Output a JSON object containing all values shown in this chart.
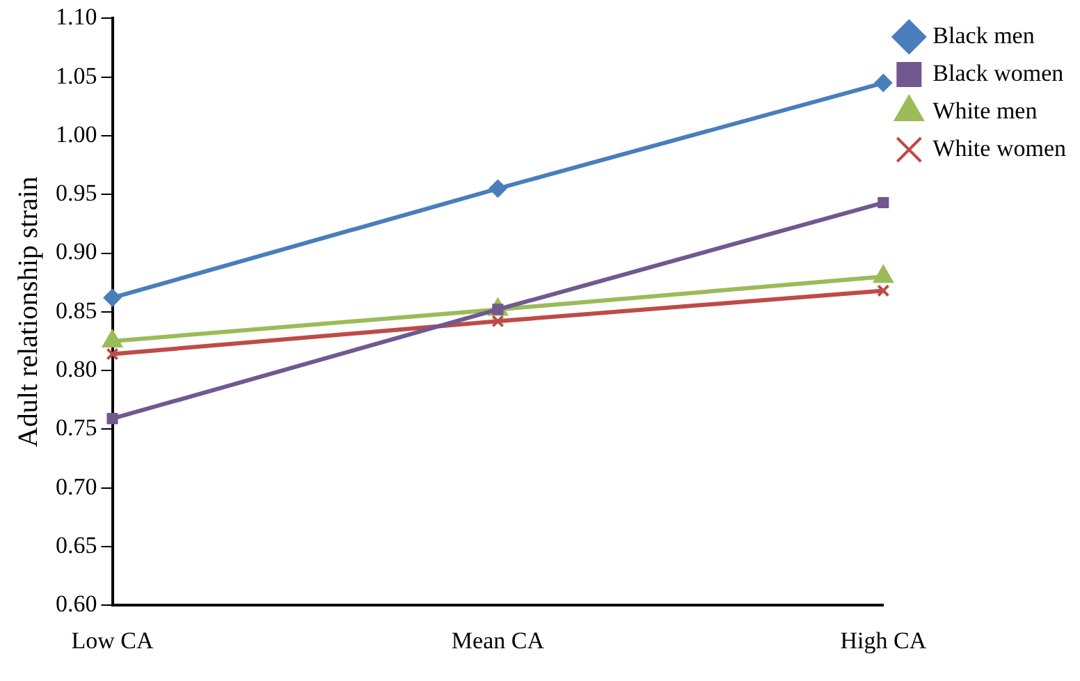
{
  "chart_data": {
    "type": "line",
    "ylabel": "Adult relationship strain",
    "categories": [
      "Low CA",
      "Mean CA",
      "High CA"
    ],
    "series": [
      {
        "name": "Black men",
        "color": "#4a7ebb",
        "marker": "diamond",
        "values": [
          0.862,
          0.955,
          1.045
        ]
      },
      {
        "name": "Black women",
        "color": "#71588f",
        "marker": "square",
        "values": [
          0.759,
          0.852,
          0.943
        ]
      },
      {
        "name": "White men",
        "color": "#9bbb59",
        "marker": "triangle",
        "values": [
          0.825,
          0.852,
          0.88
        ]
      },
      {
        "name": "White women",
        "color": "#be4b48",
        "marker": "cross",
        "values": [
          0.814,
          0.842,
          0.868
        ]
      }
    ],
    "ylim": [
      0.6,
      1.1
    ],
    "yticks": [
      {
        "value": 0.6,
        "label": "0.60"
      },
      0.65,
      {
        "value": 0.7,
        "label": "0.70"
      },
      0.75,
      {
        "value": 0.8,
        "label": "0.80"
      },
      0.85,
      {
        "value": 0.9,
        "label": "0.90"
      },
      0.95,
      {
        "value": 1,
        "label": "1.00"
      },
      1.05,
      {
        "value": 1.1,
        "label": "1.10"
      }
    ],
    "grid": false,
    "legend": "top right"
  }
}
